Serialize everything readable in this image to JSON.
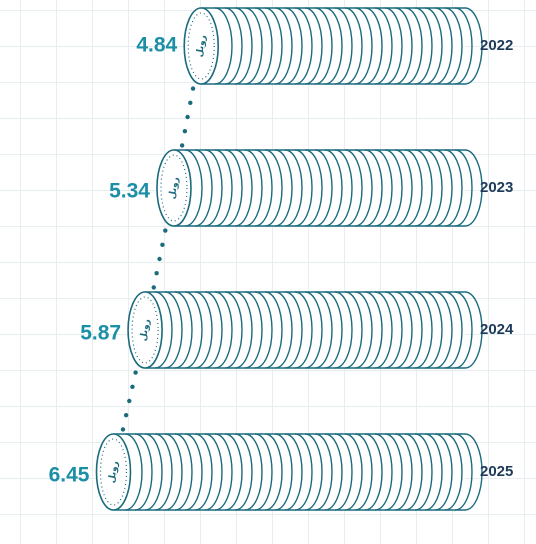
{
  "chart_data": {
    "type": "bar",
    "orientation": "horizontal",
    "categories": [
      "2022",
      "2023",
      "2024",
      "2025"
    ],
    "values": [
      4.84,
      5.34,
      5.87,
      6.45
    ],
    "coin_label": "روبل",
    "color": "#1b6b7d",
    "label_color": "#1b8fa6"
  }
}
